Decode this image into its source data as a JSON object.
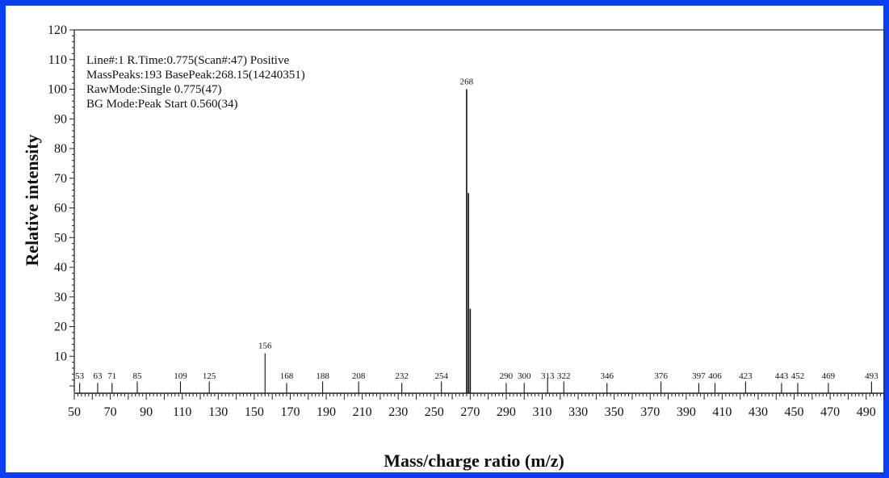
{
  "chart_data": {
    "type": "bar",
    "subtype": "mass-spectrum",
    "xlabel": "Mass/charge ratio (m/z)",
    "ylabel": "Relative intensity",
    "xlim": [
      50,
      500
    ],
    "ylim": [
      0,
      120
    ],
    "x_ticks": [
      50,
      70,
      90,
      110,
      130,
      150,
      170,
      190,
      210,
      230,
      250,
      270,
      290,
      310,
      330,
      350,
      370,
      390,
      410,
      430,
      450,
      470,
      490
    ],
    "y_ticks": [
      10,
      20,
      30,
      40,
      50,
      60,
      70,
      80,
      90,
      100,
      110,
      120
    ],
    "info_lines": [
      "Line#:1   R.Time:0.775(Scan#:47)  Positive",
      "MassPeaks:193   BasePeak:268.15(14240351)",
      "RawMode:Single 0.775(47)",
      "BG Mode:Peak Start 0.560(34)"
    ],
    "peaks": [
      {
        "mz": 53,
        "label": "53",
        "intensity": 1
      },
      {
        "mz": 63,
        "label": "63",
        "intensity": 1
      },
      {
        "mz": 71,
        "label": "71",
        "intensity": 1
      },
      {
        "mz": 85,
        "label": "85",
        "intensity": 1.5
      },
      {
        "mz": 109,
        "label": "109",
        "intensity": 1.5
      },
      {
        "mz": 125,
        "label": "125",
        "intensity": 1.5
      },
      {
        "mz": 156,
        "label": "156",
        "intensity": 11
      },
      {
        "mz": 168,
        "label": "168",
        "intensity": 1
      },
      {
        "mz": 188,
        "label": "188",
        "intensity": 1.5
      },
      {
        "mz": 208,
        "label": "208",
        "intensity": 1.5
      },
      {
        "mz": 232,
        "label": "232",
        "intensity": 1
      },
      {
        "mz": 254,
        "label": "254",
        "intensity": 1.5
      },
      {
        "mz": 268,
        "label": "268",
        "intensity": 100
      },
      {
        "mz": 269,
        "label": "",
        "intensity": 65
      },
      {
        "mz": 270,
        "label": "",
        "intensity": 26
      },
      {
        "mz": 290,
        "label": "290",
        "intensity": 1
      },
      {
        "mz": 300,
        "label": "300",
        "intensity": 1
      },
      {
        "mz": 313,
        "label": "313",
        "intensity": 2.5
      },
      {
        "mz": 322,
        "label": "322",
        "intensity": 1.5
      },
      {
        "mz": 346,
        "label": "346",
        "intensity": 1
      },
      {
        "mz": 376,
        "label": "376",
        "intensity": 1.5
      },
      {
        "mz": 397,
        "label": "397",
        "intensity": 1
      },
      {
        "mz": 406,
        "label": "406",
        "intensity": 1
      },
      {
        "mz": 423,
        "label": "423",
        "intensity": 1.5
      },
      {
        "mz": 443,
        "label": "443",
        "intensity": 1
      },
      {
        "mz": 452,
        "label": "452",
        "intensity": 1
      },
      {
        "mz": 469,
        "label": "469",
        "intensity": 1
      },
      {
        "mz": 493,
        "label": "493",
        "intensity": 1.5
      }
    ]
  }
}
